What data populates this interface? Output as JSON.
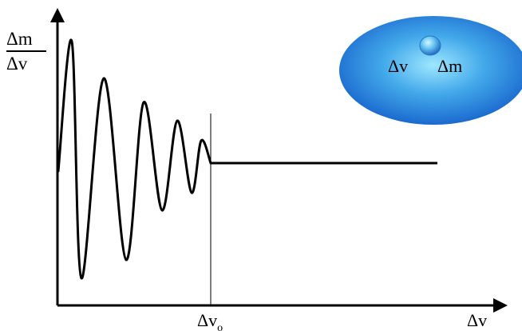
{
  "axes": {
    "y_label_numerator": "Δm",
    "y_label_denominator": "Δv",
    "x_label": "Δv",
    "threshold_label_base": "Δv",
    "threshold_label_subscript": "o"
  },
  "inset": {
    "label_left": "Δv",
    "label_right": "Δm"
  },
  "colors": {
    "ink": "#000000",
    "ellipse_outer": "#1363c9",
    "ellipse_inner": "#7fdcff",
    "sphere_outer": "#1d72c9",
    "sphere_inner": "#b7ecff"
  }
}
